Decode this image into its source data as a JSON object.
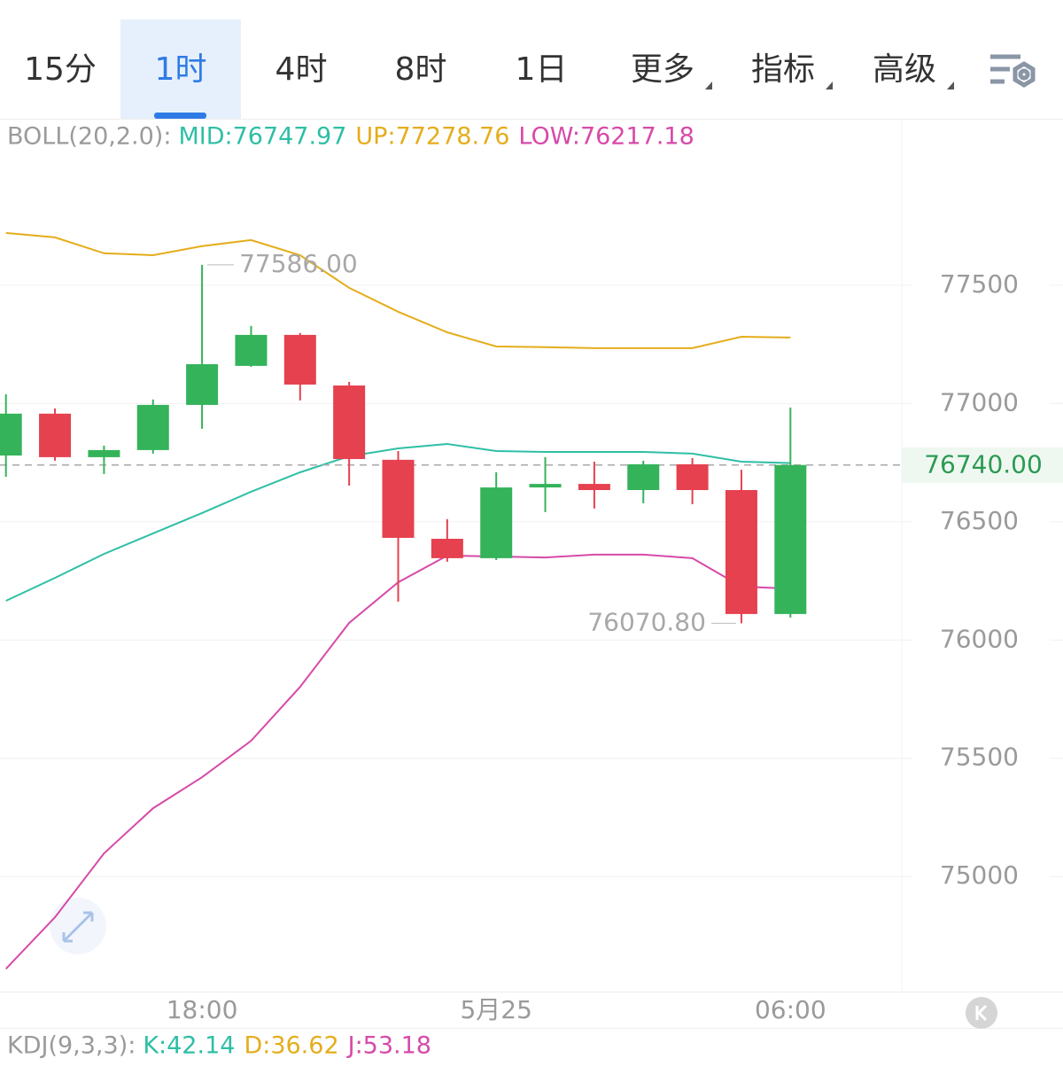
{
  "tabs": [
    "15分",
    "1时",
    "4时",
    "8时",
    "1日",
    "更多",
    "指标",
    "高级"
  ],
  "selected_tab": 1,
  "chart_data": {
    "type": "candlestick",
    "indicator": "BOLL(20,2.0):",
    "categories": [
      null,
      null,
      null,
      null,
      "18:00",
      null,
      null,
      null,
      null,
      null,
      "5月25",
      null,
      null,
      null,
      null,
      null,
      "06:00"
    ],
    "ohlc": {
      "up_color": "#34b35a",
      "down_color": "#e5414f",
      "open": [
        76780,
        76957,
        76773,
        76803,
        76994,
        77159,
        77290,
        77076,
        76762,
        76428,
        76346,
        76645,
        76660,
        76634,
        76743,
        76634,
        76110
      ],
      "high": [
        77039,
        76979,
        76822,
        77017,
        77586,
        77328,
        77298,
        77091,
        76799,
        76511,
        76709,
        76773,
        76754,
        76758,
        76769,
        76720,
        76983
      ],
      "low": [
        76690,
        76758,
        76702,
        76788,
        76893,
        77155,
        77013,
        76653,
        76162,
        76331,
        76338,
        76541,
        76556,
        76578,
        76574,
        76070.8,
        76095
      ],
      "close": [
        76957,
        76773,
        76803,
        76994,
        77166,
        77290,
        77080,
        76765,
        76432,
        76346,
        76645,
        76660,
        76634,
        76743,
        76634,
        76110,
        76740
      ]
    },
    "series": [
      {
        "name": "MID",
        "label": "MID:76747.97",
        "color": "#2ebfa5",
        "values": [
          76166,
          76263,
          76364,
          76451,
          76537,
          76627,
          76709,
          76777,
          76810,
          76829,
          76799,
          76795,
          76795,
          76795,
          76788,
          76754,
          76747.97
        ]
      },
      {
        "name": "UP",
        "label": "UP:77278.76",
        "color": "#e5ad1c",
        "values": [
          77721,
          77702,
          77635,
          77627,
          77665,
          77691,
          77627,
          77489,
          77388,
          77301,
          77241,
          77238,
          77234,
          77234,
          77234,
          77282,
          77278.76
        ]
      },
      {
        "name": "LOW",
        "label": "LOW:76217.18",
        "color": "#d64aa9",
        "values": [
          74610,
          74828,
          75098,
          75289,
          75420,
          75574,
          75802,
          76072,
          76244,
          76357,
          76353,
          76349,
          76361,
          76361,
          76346,
          76226,
          76217.18
        ]
      }
    ],
    "max_label": {
      "value": 77586,
      "label": "77586.00"
    },
    "min_label": {
      "value": 76070.8,
      "label": "76070.80"
    },
    "last_price": {
      "value": 76740,
      "label": "76740.00"
    },
    "ylim": [
      74510,
      78200
    ],
    "yticks": [
      75000,
      75500,
      76000,
      76500,
      77000,
      77500
    ],
    "grid": true
  },
  "kdj": {
    "title": "KDJ(9,3,3):",
    "items": [
      {
        "label": "K:42.14",
        "color": "#2ebfa5"
      },
      {
        "label": "D:36.62",
        "color": "#e5ad1c"
      },
      {
        "label": "J:53.18",
        "color": "#d64aa9"
      }
    ]
  }
}
